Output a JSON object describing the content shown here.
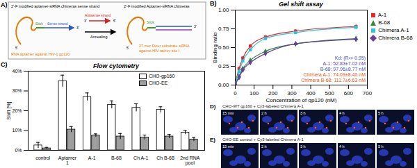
{
  "chart_data": [
    {
      "type": "line",
      "panel_label": "B)",
      "title": "Gel shift assay",
      "x_label": "Concentration of gp120 (nM)",
      "y_label": "Binding ratio",
      "x": [
        0,
        20,
        40,
        80,
        160,
        320,
        640
      ],
      "xlim": [
        0,
        700
      ],
      "xticks": [
        0,
        100,
        200,
        300,
        400,
        500,
        600,
        700
      ],
      "ylim": [
        0,
        1
      ],
      "yticks": [
        {
          "value": 0,
          "label": "0.00"
        },
        {
          "value": 0.25,
          "label": "0.25"
        },
        {
          "value": 0.5,
          "label": "0.50"
        },
        {
          "value": 0.75,
          "label": "0.75"
        },
        {
          "value": 1,
          "label": "1.00"
        }
      ],
      "legend": "right",
      "series": [
        {
          "name": "A-1",
          "color": "#e8262a",
          "marker": "square",
          "values": [
            0.02,
            0.22,
            0.36,
            0.52,
            0.64,
            0.72,
            0.78
          ],
          "errors": [
            0.01,
            0.02,
            0.02,
            0.02,
            0.02,
            0.02,
            0.03
          ]
        },
        {
          "name": "B-68",
          "color": "#2e8b3a",
          "marker": "triangle",
          "values": [
            0.01,
            0.12,
            0.22,
            0.33,
            0.45,
            0.55,
            0.62
          ],
          "errors": [
            0.01,
            0.02,
            0.02,
            0.02,
            0.02,
            0.02,
            0.03
          ]
        },
        {
          "name": "Chimera A-1",
          "color": "#2bc4d8",
          "marker": "square",
          "values": [
            0.02,
            0.18,
            0.32,
            0.47,
            0.62,
            0.7,
            0.77
          ],
          "errors": [
            0.01,
            0.02,
            0.02,
            0.02,
            0.02,
            0.02,
            0.03
          ]
        },
        {
          "name": "Chimera B-68",
          "color": "#6a3d9a",
          "marker": "diamond",
          "values": [
            0.01,
            0.1,
            0.2,
            0.3,
            0.42,
            0.55,
            0.61
          ],
          "errors": [
            0.01,
            0.02,
            0.02,
            0.02,
            0.02,
            0.02,
            0.03
          ]
        }
      ],
      "annotations": [
        {
          "text": "Kd: (R²> 0.95)",
          "color": "#3b5bb5"
        },
        {
          "text": "A-1: 52.83±7.02 nM",
          "color": "#5a3fb0"
        },
        {
          "text": "B-68: 97.96±8.77 nM",
          "color": "#3b5bb5"
        },
        {
          "text": "Chimera A-1: 74.09±8.40 nM",
          "color": "#e05a1a"
        },
        {
          "text": "Chimera B-68: 111.7±6.63 nM",
          "color": "#e05a1a"
        }
      ]
    },
    {
      "type": "bar",
      "panel_label": "C)",
      "title": "Flow cytometry",
      "y_label": "Shift [%]",
      "categories": [
        "control",
        "Aptamer 1",
        "A-1",
        "B-68",
        "Ch A-1",
        "Ch B-68",
        "2nd RNA pool"
      ],
      "ylim": [
        0,
        40
      ],
      "yticks": [
        {
          "value": 0,
          "label": "0%"
        },
        {
          "value": 10,
          "label": "10%"
        },
        {
          "value": 20,
          "label": "20%"
        },
        {
          "value": 30,
          "label": "30%"
        },
        {
          "value": 40,
          "label": "40%"
        }
      ],
      "legend": "top-right",
      "series": [
        {
          "name": "CHO-gp160",
          "color": "#ffffff",
          "values": [
            2.5,
            35,
            27,
            23,
            21.5,
            20.5,
            9
          ],
          "errors": [
            1.5,
            3,
            2,
            2,
            2,
            1.5,
            1
          ]
        },
        {
          "name": "CHO-EE",
          "color": "#9e9e9e",
          "values": [
            1,
            10.5,
            7.5,
            7,
            6.5,
            7,
            5.5
          ],
          "errors": [
            0.5,
            1.5,
            0.8,
            1.5,
            1.2,
            1,
            1
          ]
        }
      ]
    }
  ],
  "diagram": {
    "panel_label": "A)",
    "left_title": "2'-F modified aptamer-siRNA chimeras sense strand",
    "right_title": "2'-F modified Aptamer-siRNA chimeras",
    "stick": "Stick",
    "sense": "Sense strand",
    "antisense": "Antisense strand",
    "step": "Annealing",
    "aptamer_caption": "RNA aptamer against HIV-1 gp120",
    "sirna_caption": "27 mer Dicer substrate siRNA against HIV tat/rev site I",
    "five_prime": "5'",
    "three_prime": "3'"
  },
  "images": [
    {
      "panel_label": "D)",
      "caption": "CHO-WT gp160 + Cy3-labeled Chimera A-1",
      "times": [
        "15 min",
        "2 h",
        "3 h",
        "4 h",
        "5 h"
      ]
    },
    {
      "panel_label": "E)",
      "caption": "CHO-EE control + Cy3-labeled Chimera A-1",
      "times": [
        "15 min",
        "2 h",
        "3 h",
        "4 h",
        "5 h"
      ]
    }
  ]
}
